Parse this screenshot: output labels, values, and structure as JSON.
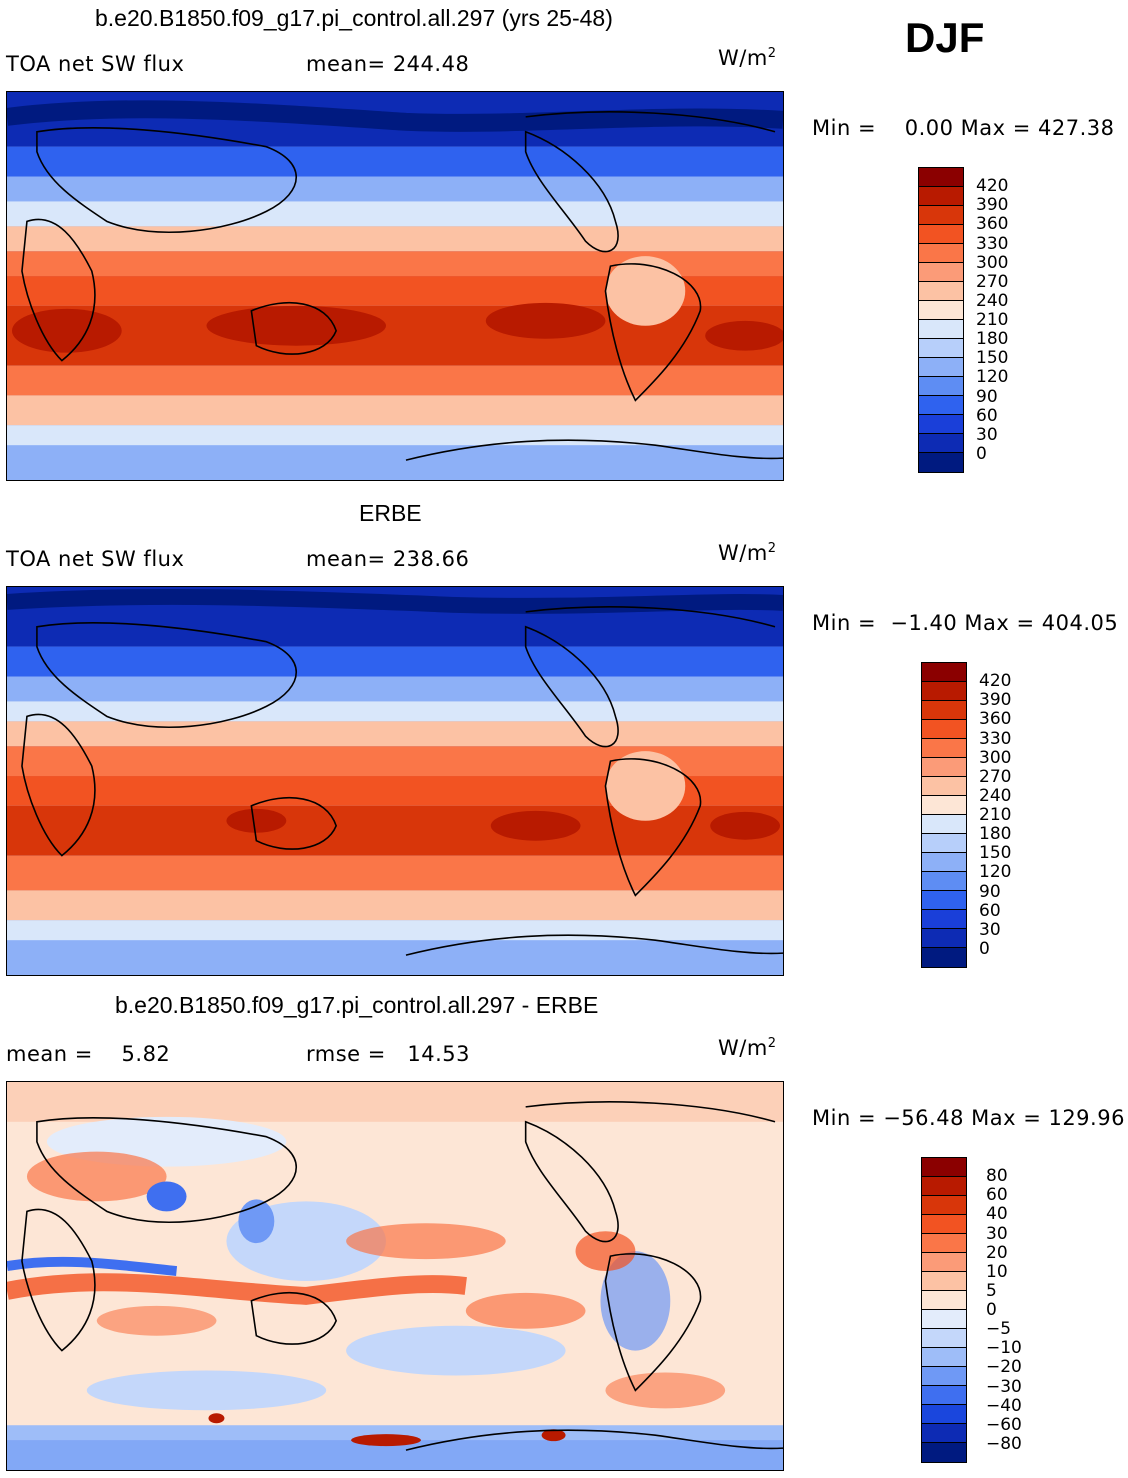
{
  "season": "DJF",
  "units_base": "W/m",
  "units_exp": "2",
  "panels": [
    {
      "title": "b.e20.B1850.f09_g17.pi_control.all.297 (yrs 25-48)",
      "left_label": "TOA net SW flux",
      "stat_label": "mean= 244.48",
      "minmax": "Min =    0.00 Max = 427.38",
      "kind": "abs"
    },
    {
      "title": "ERBE",
      "left_label": "TOA net SW flux",
      "stat_label": "mean= 238.66",
      "minmax": "Min =  −1.40 Max = 404.05",
      "kind": "abs"
    },
    {
      "title": "b.e20.B1850.f09_g17.pi_control.all.297 - ERBE",
      "left_label": "mean =    5.82",
      "stat_label": "rmse =   14.53",
      "minmax": "Min = −56.48 Max = 129.96",
      "kind": "diff"
    }
  ],
  "colorbar_abs": {
    "labels": [
      "420",
      "390",
      "360",
      "330",
      "300",
      "270",
      "240",
      "210",
      "180",
      "150",
      "120",
      "90",
      "60",
      "30",
      "0"
    ],
    "colors": [
      "#8b0000",
      "#b81a00",
      "#d8360a",
      "#f25322",
      "#fa7648",
      "#fb9b78",
      "#fcc2a4",
      "#fde6d6",
      "#d9e7fa",
      "#b7cffa",
      "#8db0f7",
      "#5e8df3",
      "#2f62ef",
      "#1a3fd9",
      "#0d2bb4",
      "#001a80"
    ]
  },
  "colorbar_diff": {
    "labels": [
      "80",
      "60",
      "40",
      "30",
      "20",
      "10",
      "5",
      "0",
      "−5",
      "−10",
      "−20",
      "−30",
      "−40",
      "−60",
      "−80"
    ],
    "colors": [
      "#8b0000",
      "#b81a00",
      "#d8360a",
      "#f25322",
      "#fa7648",
      "#fb9b78",
      "#fcc2a4",
      "#fde6d6",
      "#e3ecfb",
      "#c4d7fa",
      "#9ebdf8",
      "#6f99f5",
      "#3f6ff0",
      "#1a46dd",
      "#0d2bb4",
      "#001a80"
    ]
  }
}
